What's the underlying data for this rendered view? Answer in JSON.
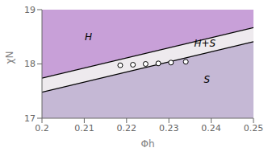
{
  "chart_data": {
    "type": "scatter",
    "xlabel": "Φh",
    "ylabel": "χN",
    "xlim": [
      0.2,
      0.25
    ],
    "ylim": [
      17,
      19
    ],
    "xticks": [
      0.2,
      0.21,
      0.22,
      0.23,
      0.24,
      0.25
    ],
    "yticks": [
      17,
      18,
      19
    ],
    "grid": false,
    "colors": [
      "#c8a0d8",
      "#eeeaee",
      "#c5b8d5"
    ],
    "series": [
      {
        "type": "line",
        "color": "#000000",
        "x": [
          0.2,
          0.25
        ],
        "values": [
          17.74,
          18.67
        ]
      },
      {
        "type": "line",
        "color": "#000000",
        "x": [
          0.2,
          0.25
        ],
        "values": [
          17.48,
          18.41
        ]
      },
      {
        "type": "scatter",
        "color": "#000000",
        "marker": "open_circle",
        "x": [
          0.2185,
          0.2215,
          0.2245,
          0.2275,
          0.2305,
          0.234
        ],
        "values": [
          17.975,
          17.985,
          18.0,
          18.01,
          18.025,
          18.04
        ]
      }
    ],
    "annotations": [
      {
        "text": "H",
        "x": 0.211,
        "y": 18.5
      },
      {
        "text": "H+S",
        "x": 0.2385,
        "y": 18.38
      },
      {
        "text": "S",
        "x": 0.239,
        "y": 17.72
      }
    ]
  }
}
